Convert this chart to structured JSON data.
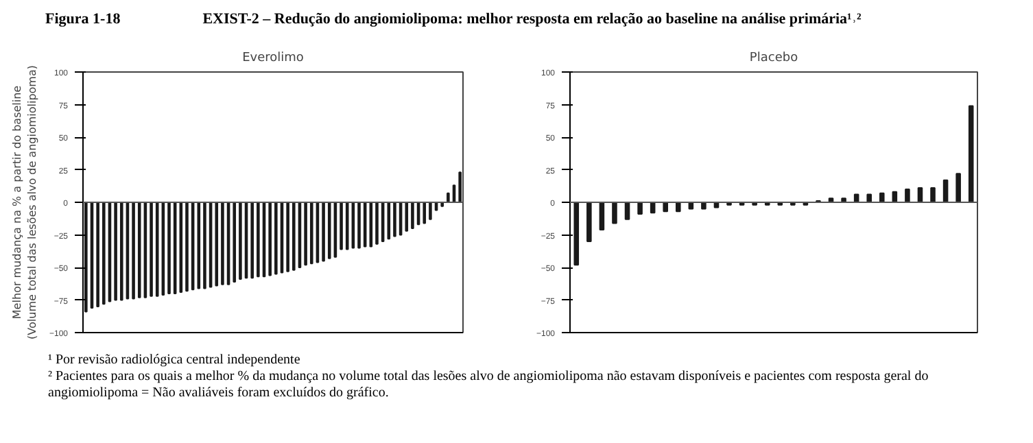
{
  "chart_data": [
    {
      "type": "bar",
      "title": "Everolimo",
      "ylabel": "Melhor mudança na % a partir do baseline\n(Volume total das lesões alvo de angiomiolipoma)",
      "annotations": [
        "Figura 1-18",
        "EXIST-2 – Redução do angiomiolipoma: melhor resposta em relação ao baseline na análise primária¹˒²",
        "¹ Por revisão radiológica central independente",
        "² Pacientes para os quais a melhor % da mudança no volume total das lesões alvo de angiomiolipoma não estavam disponíveis e pacientes com resposta geral do angiomiolipoma = Não avaliáveis foram excluídos do gráfico."
      ],
      "categories": [
        null,
        null,
        null,
        null,
        null,
        null,
        null,
        null,
        null,
        null,
        null,
        null,
        null,
        null,
        null,
        null,
        null,
        null,
        null,
        null,
        null,
        null,
        null,
        null,
        null,
        null,
        null,
        null,
        null,
        null,
        null,
        null,
        null,
        null,
        null,
        null,
        null,
        null,
        null,
        null,
        null,
        null,
        null,
        null,
        null,
        null,
        null,
        null,
        null,
        null,
        null,
        null,
        null,
        null,
        null,
        null,
        null,
        null,
        null,
        null,
        null,
        null,
        null,
        null
      ],
      "values": [
        -84,
        -81,
        -80,
        -78,
        -76,
        -75,
        -75,
        -74,
        -74,
        -73,
        -73,
        -72,
        -72,
        -71,
        -70,
        -70,
        -69,
        -68,
        -67,
        -66,
        -66,
        -65,
        -64,
        -63,
        -63,
        -61,
        -59,
        -58,
        -58,
        -57,
        -57,
        -56,
        -55,
        -54,
        -53,
        -52,
        -50,
        -48,
        -47,
        -46,
        -45,
        -43,
        -42,
        -36,
        -36,
        -35,
        -35,
        -34,
        -34,
        -32,
        -30,
        -28,
        -26,
        -25,
        -22,
        -20,
        -17,
        -16,
        -13,
        -6,
        -3,
        7,
        13,
        23
      ],
      "color": "#1a1a1a",
      "ylim": [
        -100,
        100
      ],
      "yticks": [
        -100,
        -75,
        -50,
        -25,
        0,
        25,
        50,
        75,
        100
      ],
      "ref_lines": [
        {
          "axis": "y",
          "value": 0
        }
      ],
      "grid": false
    },
    {
      "type": "bar",
      "title": "Placebo",
      "categories": [
        null,
        null,
        null,
        null,
        null,
        null,
        null,
        null,
        null,
        null,
        null,
        null,
        null,
        null,
        null,
        null,
        null,
        null,
        null,
        null,
        null,
        null,
        null,
        null,
        null,
        null,
        null,
        null,
        null,
        null,
        null,
        null
      ],
      "values": [
        -48,
        -30,
        -21,
        -16,
        -13,
        -9,
        -8,
        -7,
        -7,
        -5,
        -5,
        -4,
        -2,
        -2,
        -2,
        -2,
        -2,
        -2,
        -2,
        1,
        3,
        3,
        6,
        6,
        7,
        8,
        10,
        11,
        11,
        17,
        22,
        74
      ],
      "color": "#1a1a1a",
      "ylim": [
        -100,
        100
      ],
      "yticks": [
        -100,
        -75,
        -50,
        -25,
        0,
        25,
        50,
        75,
        100
      ],
      "ref_lines": [
        {
          "axis": "y",
          "value": 0
        }
      ],
      "grid": false
    }
  ]
}
